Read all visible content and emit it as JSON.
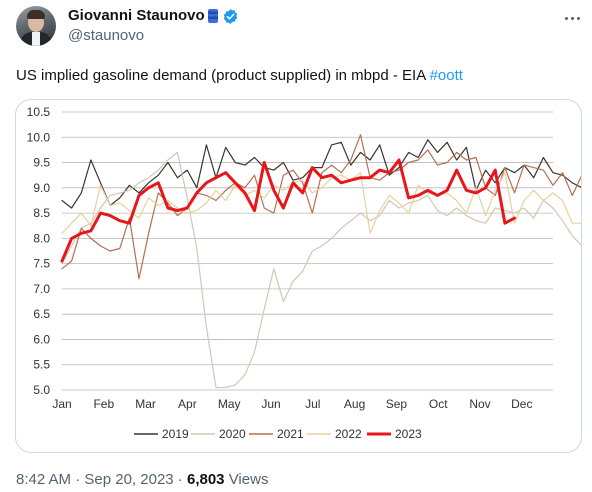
{
  "author": {
    "name": "Giovanni Staunovo",
    "handle": "@staunovo"
  },
  "tweet": {
    "text": "US implied gasoline demand (product supplied) in mbpd - EIA ",
    "hashtag": "#oott"
  },
  "meta": {
    "time": "8:42 AM",
    "sep1": " · ",
    "date": "Sep 20, 2023",
    "sep2": " · ",
    "views_count": "6,803",
    "views_label": " Views"
  },
  "icons": {
    "verified": "verified-badge-icon",
    "flag": "oil-barrel-emoji-icon",
    "more": "more-options-icon"
  },
  "chart_data": {
    "type": "line",
    "xlabels": [
      "Jan",
      "Feb",
      "Mar",
      "Apr",
      "May",
      "Jun",
      "Jul",
      "Aug",
      "Sep",
      "Oct",
      "Nov",
      "Dec"
    ],
    "yticks": [
      "5.0",
      "5.5",
      "6.0",
      "6.5",
      "7.0",
      "7.5",
      "8.0",
      "8.5",
      "9.0",
      "9.5",
      "10.0",
      "10.5"
    ],
    "ylim": [
      5.0,
      10.5
    ],
    "x_unit": "week",
    "grid": true,
    "legend_position": "bottom",
    "series": [
      {
        "name": "2019",
        "color": "#3b3430",
        "width": 1.2,
        "values": [
          8.75,
          8.6,
          8.9,
          9.55,
          9.1,
          8.65,
          8.8,
          9.05,
          8.9,
          9.1,
          9.25,
          9.5,
          9.2,
          9.35,
          9.0,
          9.85,
          9.2,
          9.8,
          9.5,
          9.45,
          9.6,
          9.4,
          9.35,
          9.5,
          9.15,
          9.2,
          9.4,
          9.4,
          9.85,
          9.9,
          9.45,
          9.7,
          9.55,
          9.85,
          9.25,
          9.4,
          9.7,
          9.6,
          9.95,
          9.7,
          9.9,
          9.55,
          9.8,
          8.95,
          9.35,
          9.1,
          9.4,
          9.3,
          9.45,
          9.2,
          9.6,
          9.3,
          9.25,
          9.1,
          9.0,
          8.85,
          9.25,
          9.4,
          9.5,
          8.95
        ]
      },
      {
        "name": "2020",
        "color": "#d2c7b3",
        "width": 1.2,
        "values": [
          7.5,
          7.85,
          8.2,
          8.3,
          8.6,
          8.85,
          8.9,
          8.95,
          9.1,
          9.2,
          9.35,
          9.55,
          9.7,
          8.8,
          7.8,
          6.25,
          5.05,
          5.05,
          5.1,
          5.3,
          5.75,
          6.6,
          7.4,
          6.75,
          7.15,
          7.35,
          7.75,
          7.85,
          8.0,
          8.2,
          8.35,
          8.5,
          8.35,
          8.45,
          8.75,
          8.6,
          8.7,
          8.75,
          8.85,
          8.55,
          8.45,
          8.6,
          8.45,
          8.35,
          8.3,
          8.6,
          8.55,
          8.5,
          8.6,
          8.4,
          8.75,
          8.6,
          8.35,
          8.05,
          7.85,
          7.55,
          7.95,
          8.0,
          8.05,
          8.1
        ]
      },
      {
        "name": "2021",
        "color": "#b56f52",
        "width": 1.2,
        "values": [
          7.4,
          7.55,
          8.2,
          8.0,
          7.85,
          7.75,
          7.8,
          8.4,
          7.2,
          8.1,
          8.9,
          8.7,
          8.45,
          8.6,
          8.9,
          8.85,
          8.75,
          8.95,
          9.1,
          9.0,
          9.25,
          8.6,
          8.5,
          9.25,
          9.35,
          9.1,
          8.5,
          9.3,
          9.45,
          9.3,
          9.55,
          10.05,
          9.2,
          9.15,
          9.3,
          9.35,
          9.5,
          9.55,
          9.75,
          9.45,
          9.5,
          9.7,
          9.55,
          9.6,
          9.0,
          8.85,
          9.4,
          8.9,
          9.45,
          9.4,
          9.35,
          9.05,
          9.3,
          8.85,
          9.25,
          8.9,
          9.45,
          9.2,
          9.05,
          9.75
        ]
      },
      {
        "name": "2022",
        "color": "#e9d19c",
        "width": 1.2,
        "values": [
          8.1,
          8.3,
          8.5,
          8.25,
          9.05,
          8.65,
          8.7,
          8.55,
          8.4,
          8.8,
          8.65,
          8.75,
          8.6,
          8.5,
          8.55,
          8.7,
          8.95,
          8.75,
          9.05,
          8.85,
          8.95,
          8.8,
          9.05,
          8.95,
          9.1,
          9.15,
          8.9,
          9.0,
          9.2,
          9.25,
          9.15,
          9.3,
          8.1,
          8.55,
          8.85,
          8.7,
          8.5,
          9.05,
          8.9,
          8.85,
          8.9,
          8.75,
          8.5,
          9.0,
          8.45,
          8.95,
          9.3,
          8.3,
          8.75,
          8.95,
          8.75,
          8.9,
          8.75,
          8.3,
          8.3,
          8.25,
          8.3,
          8.75,
          8.15,
          7.5
        ]
      },
      {
        "name": "2023",
        "color": "#e8161b",
        "width": 3,
        "values": [
          7.55,
          8.0,
          8.1,
          8.15,
          8.5,
          8.45,
          8.35,
          8.3,
          8.85,
          9.0,
          9.1,
          8.6,
          8.55,
          8.6,
          8.9,
          9.1,
          9.2,
          9.3,
          9.1,
          8.9,
          8.55,
          9.5,
          8.95,
          8.6,
          9.1,
          8.9,
          9.4,
          9.2,
          9.25,
          9.1,
          9.15,
          9.2,
          9.2,
          9.35,
          9.3,
          9.55,
          8.8,
          8.85,
          8.95,
          8.85,
          8.95,
          9.35,
          8.95,
          8.9,
          9.0,
          9.35,
          8.3,
          8.4
        ]
      }
    ]
  }
}
